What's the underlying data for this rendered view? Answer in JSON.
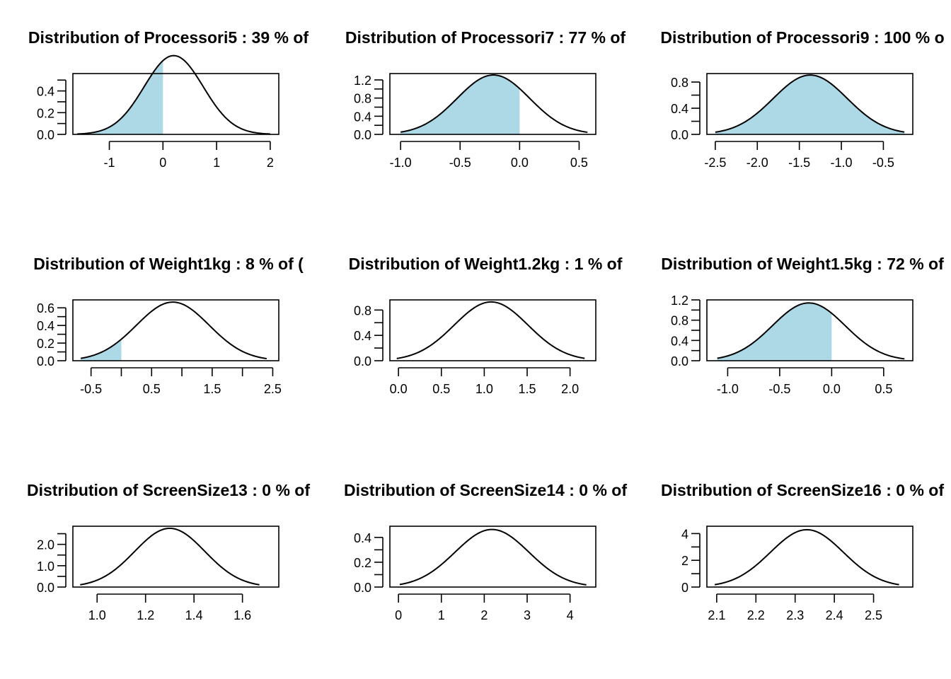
{
  "figure": {
    "fill_color": "#add8e6",
    "line_color": "#000000",
    "background": "#ffffff"
  },
  "chart_data": [
    {
      "type": "area",
      "title": "Distribution of Processori5 : 39 % of",
      "mean": 0.2,
      "sd": 0.55,
      "x_range": [
        -1.6,
        2.0
      ],
      "fill_to": 0,
      "xlim": [
        -1.68,
        2.16
      ],
      "ylim": [
        0,
        0.56
      ],
      "x_ticks": [
        {
          "v": -1,
          "label": "-1"
        },
        {
          "v": 0,
          "label": "0"
        },
        {
          "v": 1,
          "label": "1"
        },
        {
          "v": 2,
          "label": "2"
        }
      ],
      "y_ticks": [
        {
          "v": 0,
          "label": "0.0"
        },
        {
          "v": 0.1
        },
        {
          "v": 0.2,
          "label": "0.2"
        },
        {
          "v": 0.3
        },
        {
          "v": 0.4,
          "label": "0.4"
        },
        {
          "v": 0.5
        }
      ]
    },
    {
      "type": "area",
      "title": "Distribution of Processori7 : 77 % of",
      "mean": -0.22,
      "sd": 0.305,
      "x_range": [
        -1.0,
        0.57
      ],
      "fill_to": 0,
      "xlim": [
        -1.09,
        0.64
      ],
      "ylim": [
        0,
        1.34
      ],
      "x_ticks": [
        {
          "v": -1.0,
          "label": "-1.0"
        },
        {
          "v": -0.5,
          "label": "-0.5"
        },
        {
          "v": 0.0,
          "label": "0.0"
        },
        {
          "v": 0.5,
          "label": "0.5"
        }
      ],
      "y_ticks": [
        {
          "v": 0,
          "label": "0.0"
        },
        {
          "v": 0.2
        },
        {
          "v": 0.4,
          "label": "0.4"
        },
        {
          "v": 0.6
        },
        {
          "v": 0.8,
          "label": "0.8"
        },
        {
          "v": 1.0
        },
        {
          "v": 1.2,
          "label": "1.2"
        }
      ]
    },
    {
      "type": "area",
      "title": "Distribution of Processori9 : 100 % o",
      "mean": -1.37,
      "sd": 0.44,
      "x_range": [
        -2.5,
        -0.25
      ],
      "fill_to": -0.2,
      "xlim": [
        -2.6,
        -0.15
      ],
      "ylim": [
        0,
        0.93
      ],
      "x_ticks": [
        {
          "v": -2.5,
          "label": "-2.5"
        },
        {
          "v": -2.0,
          "label": "-2.0"
        },
        {
          "v": -1.5,
          "label": "-1.5"
        },
        {
          "v": -1.0,
          "label": "-1.0"
        },
        {
          "v": -0.5,
          "label": "-0.5"
        }
      ],
      "y_ticks": [
        {
          "v": 0,
          "label": "0.0"
        },
        {
          "v": 0.2
        },
        {
          "v": 0.4,
          "label": "0.4"
        },
        {
          "v": 0.6
        },
        {
          "v": 0.8,
          "label": "0.8"
        }
      ]
    },
    {
      "type": "area",
      "title": "Distribution of Weight1kg : 8 % of (",
      "mean": 0.85,
      "sd": 0.6,
      "x_range": [
        -0.67,
        2.4
      ],
      "fill_to": 0,
      "xlim": [
        -0.8,
        2.6
      ],
      "ylim": [
        0,
        0.69
      ],
      "x_ticks": [
        {
          "v": -0.5,
          "label": "-0.5"
        },
        {
          "v": 0.0
        },
        {
          "v": 0.5,
          "label": "0.5"
        },
        {
          "v": 1.0
        },
        {
          "v": 1.5,
          "label": "1.5"
        },
        {
          "v": 2.0
        },
        {
          "v": 2.5,
          "label": "2.5"
        }
      ],
      "y_ticks": [
        {
          "v": 0,
          "label": "0.0"
        },
        {
          "v": 0.1
        },
        {
          "v": 0.2,
          "label": "0.2"
        },
        {
          "v": 0.3
        },
        {
          "v": 0.4,
          "label": "0.4"
        },
        {
          "v": 0.5
        },
        {
          "v": 0.6,
          "label": "0.6"
        }
      ]
    },
    {
      "type": "line",
      "title": "Distribution of Weight1.2kg : 1 % of",
      "mean": 1.08,
      "sd": 0.43,
      "x_range": [
        -0.02,
        2.17
      ],
      "fill_to": null,
      "xlim": [
        -0.1,
        2.3
      ],
      "ylim": [
        0,
        0.96
      ],
      "x_ticks": [
        {
          "v": 0.0,
          "label": "0.0"
        },
        {
          "v": 0.5,
          "label": "0.5"
        },
        {
          "v": 1.0,
          "label": "1.0"
        },
        {
          "v": 1.5,
          "label": "1.5"
        },
        {
          "v": 2.0,
          "label": "2.0"
        }
      ],
      "y_ticks": [
        {
          "v": 0,
          "label": "0.0"
        },
        {
          "v": 0.2
        },
        {
          "v": 0.4,
          "label": "0.4"
        },
        {
          "v": 0.6
        },
        {
          "v": 0.8,
          "label": "0.8"
        }
      ]
    },
    {
      "type": "area",
      "title": "Distribution of Weight1.5kg : 72 % of",
      "mean": -0.22,
      "sd": 0.35,
      "x_range": [
        -1.1,
        0.7
      ],
      "fill_to": 0,
      "xlim": [
        -1.2,
        0.78
      ],
      "ylim": [
        0,
        1.2
      ],
      "x_ticks": [
        {
          "v": -1.0,
          "label": "-1.0"
        },
        {
          "v": -0.5,
          "label": "-0.5"
        },
        {
          "v": 0.0,
          "label": "0.0"
        },
        {
          "v": 0.5,
          "label": "0.5"
        }
      ],
      "y_ticks": [
        {
          "v": 0,
          "label": "0.0"
        },
        {
          "v": 0.2
        },
        {
          "v": 0.4,
          "label": "0.4"
        },
        {
          "v": 0.6
        },
        {
          "v": 0.8,
          "label": "0.8"
        },
        {
          "v": 1.0
        },
        {
          "v": 1.2,
          "label": "1.2"
        }
      ]
    },
    {
      "type": "line",
      "title": "Distribution of ScreenSize13 : 0 % of",
      "mean": 1.3,
      "sd": 0.145,
      "x_range": [
        0.93,
        1.67
      ],
      "fill_to": null,
      "xlim": [
        0.9,
        1.75
      ],
      "ylim": [
        0,
        2.85
      ],
      "x_ticks": [
        {
          "v": 1.0,
          "label": "1.0"
        },
        {
          "v": 1.2,
          "label": "1.2"
        },
        {
          "v": 1.4,
          "label": "1.4"
        },
        {
          "v": 1.6,
          "label": "1.6"
        }
      ],
      "y_ticks": [
        {
          "v": 0,
          "label": "0.0"
        },
        {
          "v": 0.5
        },
        {
          "v": 1.0,
          "label": "1.0"
        },
        {
          "v": 1.5
        },
        {
          "v": 2.0,
          "label": "2.0"
        },
        {
          "v": 2.5
        }
      ]
    },
    {
      "type": "line",
      "title": "Distribution of ScreenSize14 : 0 % of",
      "mean": 2.18,
      "sd": 0.86,
      "x_range": [
        0.03,
        4.38
      ],
      "fill_to": null,
      "xlim": [
        -0.2,
        4.6
      ],
      "ylim": [
        0,
        0.49
      ],
      "x_ticks": [
        {
          "v": 0,
          "label": "0"
        },
        {
          "v": 1,
          "label": "1"
        },
        {
          "v": 2,
          "label": "2"
        },
        {
          "v": 3,
          "label": "3"
        },
        {
          "v": 4,
          "label": "4"
        }
      ],
      "y_ticks": [
        {
          "v": 0,
          "label": "0.0"
        },
        {
          "v": 0.1
        },
        {
          "v": 0.2,
          "label": "0.2"
        },
        {
          "v": 0.3
        },
        {
          "v": 0.4,
          "label": "0.4"
        }
      ]
    },
    {
      "type": "line",
      "title": "Distribution of ScreenSize16 : 0 % of",
      "mean": 2.33,
      "sd": 0.093,
      "x_range": [
        2.095,
        2.565
      ],
      "fill_to": null,
      "xlim": [
        2.075,
        2.6
      ],
      "ylim": [
        0,
        4.55
      ],
      "x_ticks": [
        {
          "v": 2.1,
          "label": "2.1"
        },
        {
          "v": 2.2,
          "label": "2.2"
        },
        {
          "v": 2.3,
          "label": "2.3"
        },
        {
          "v": 2.4,
          "label": "2.4"
        },
        {
          "v": 2.5,
          "label": "2.5"
        }
      ],
      "y_ticks": [
        {
          "v": 0,
          "label": "0"
        },
        {
          "v": 1
        },
        {
          "v": 2,
          "label": "2"
        },
        {
          "v": 3
        },
        {
          "v": 4,
          "label": "4"
        }
      ]
    }
  ]
}
